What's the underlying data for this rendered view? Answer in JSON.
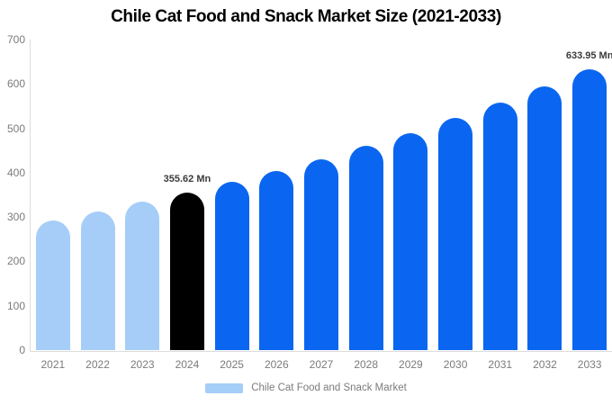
{
  "title": "Chile Cat Food and Snack Market Size (2021-2033)",
  "colors": {
    "historical_bar": "#a5cdf8",
    "highlight_bar": "#000000",
    "forecast_bar": "#0a66f0",
    "axis_line": "#dcdcdc",
    "axis_text": "#7b7b7b",
    "data_label_text": "#3b3b3b",
    "title_text": "#000000",
    "background": "#ffffff"
  },
  "chart_data": {
    "type": "bar",
    "title": "Chile Cat Food and Snack Market Size (2021-2033)",
    "categories": [
      "2021",
      "2022",
      "2023",
      "2024",
      "2025",
      "2026",
      "2027",
      "2028",
      "2029",
      "2030",
      "2031",
      "2032",
      "2033"
    ],
    "values": [
      293,
      313,
      334,
      355.62,
      379,
      404,
      431,
      460,
      490,
      523,
      557,
      594,
      633.95
    ],
    "unit": "Mn",
    "data_labels": [
      "",
      "",
      "",
      "355.62 Mn",
      "",
      "",
      "",
      "",
      "",
      "",
      "",
      "",
      "633.95 Mn"
    ],
    "bar_colors": [
      "#a5cdf8",
      "#a5cdf8",
      "#a5cdf8",
      "#000000",
      "#0a66f0",
      "#0a66f0",
      "#0a66f0",
      "#0a66f0",
      "#0a66f0",
      "#0a66f0",
      "#0a66f0",
      "#0a66f0",
      "#0a66f0"
    ],
    "xlabel": "",
    "ylabel": "",
    "ylim": [
      0,
      700
    ],
    "yticks": [
      0,
      100,
      200,
      300,
      400,
      500,
      600,
      700
    ],
    "grid": false,
    "legend": {
      "position": "bottom",
      "entries": [
        "Chile Cat Food and Snack Market"
      ],
      "swatch_color": "#a5cdf8"
    }
  }
}
